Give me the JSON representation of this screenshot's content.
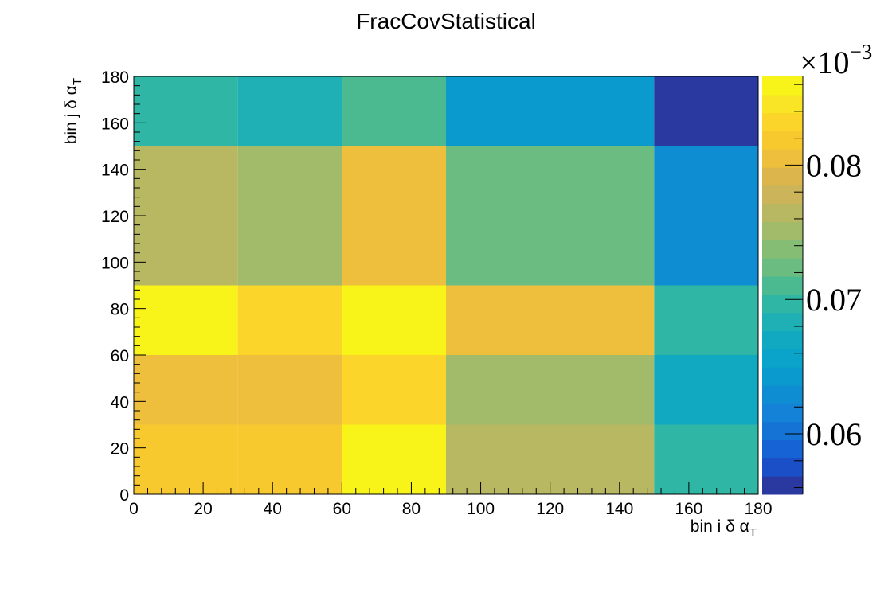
{
  "chart_data": {
    "type": "heatmap",
    "title": "FracCovStatistical",
    "xlabel": "bin i δ α",
    "xlabel_sub": "T",
    "ylabel": "bin j δ α",
    "ylabel_sub": "T",
    "x_edges": [
      0,
      30,
      60,
      90,
      150,
      180
    ],
    "y_edges": [
      0,
      30,
      60,
      90,
      150,
      180
    ],
    "xlim": [
      0,
      180
    ],
    "ylim": [
      0,
      180
    ],
    "x_ticks": [
      "0",
      "20",
      "40",
      "60",
      "80",
      "100",
      "120",
      "140",
      "160",
      "180"
    ],
    "y_ticks": [
      "0",
      "20",
      "40",
      "60",
      "80",
      "100",
      "120",
      "140",
      "160",
      "180"
    ],
    "z_unit": "×10",
    "z_unit_exp": "−3",
    "z_range": [
      0.0555,
      0.0866
    ],
    "z_ticks": [
      "0.06",
      "0.07",
      "0.08"
    ],
    "z_tick_values": [
      0.06,
      0.07,
      0.08
    ],
    "values": [
      [
        0.0818,
        0.0812,
        0.0854,
        0.0766,
        0.0694
      ],
      [
        0.081,
        0.0803,
        0.0837,
        0.0752,
        0.0669
      ],
      [
        0.0854,
        0.0837,
        0.0866,
        0.0803,
        0.0703
      ],
      [
        0.0771,
        0.0752,
        0.0803,
        0.0723,
        0.0632
      ],
      [
        0.0692,
        0.0677,
        0.0716,
        0.0638,
        0.0557
      ]
    ],
    "grid": false,
    "palette": [
      "#29399f",
      "#1a4fc8",
      "#1563d4",
      "#1473d5",
      "#1482d6",
      "#0f8dd2",
      "#0a9acd",
      "#0aa3c9",
      "#11a9c1",
      "#1fb0b5",
      "#30b6a4",
      "#4cba90",
      "#6bbc80",
      "#86bd74",
      "#a1bb6a",
      "#b8b762",
      "#cbb45a",
      "#dcb64c",
      "#edbf3c",
      "#f8c82f",
      "#fbd52a",
      "#f9e526",
      "#f8f318"
    ]
  }
}
